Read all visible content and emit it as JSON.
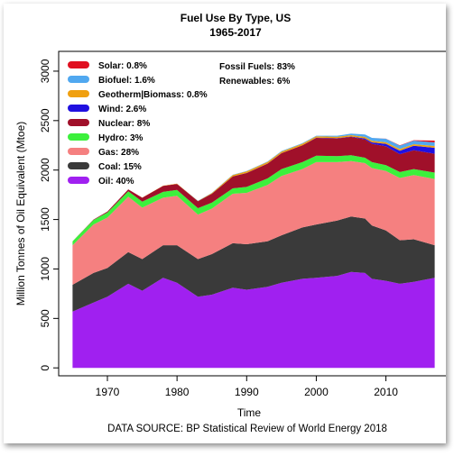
{
  "chart_data": {
    "type": "area",
    "title": "Fuel Use By Type, US",
    "subtitle": "1965-2017",
    "xlabel": "Time",
    "ylabel": "Million Tonnes of Oil Equivalent (Mtoe)",
    "source": "DATA SOURCE: BP Statistical Review of World Energy 2018",
    "stacked": true,
    "xlim": [
      1963,
      2019
    ],
    "ylim": [
      -80,
      3200
    ],
    "x_ticks": [
      1970,
      1980,
      1990,
      2000,
      2010
    ],
    "y_ticks": [
      0,
      500,
      1000,
      1500,
      2000,
      2500,
      3000
    ],
    "grid": false,
    "legend_position": "top-left",
    "summary": {
      "fossil": "Fossil Fuels: 83%",
      "renewables": "Renewables: 6%"
    },
    "x": [
      1965,
      1968,
      1970,
      1973,
      1975,
      1978,
      1980,
      1983,
      1985,
      1988,
      1990,
      1993,
      1995,
      1998,
      2000,
      2003,
      2005,
      2007,
      2008,
      2010,
      2012,
      2014,
      2017
    ],
    "series": [
      {
        "name": "Oil",
        "legend": "Oil:  40%",
        "color": "#a020f0",
        "values": [
          570,
          660,
          720,
          850,
          780,
          910,
          860,
          720,
          740,
          810,
          790,
          820,
          860,
          900,
          910,
          930,
          970,
          960,
          900,
          880,
          850,
          870,
          910
        ]
      },
      {
        "name": "Coal",
        "legend": "Coal:  15%",
        "color": "#3a3a3a",
        "values": [
          270,
          300,
          290,
          320,
          320,
          330,
          380,
          380,
          410,
          450,
          460,
          460,
          480,
          520,
          540,
          560,
          560,
          550,
          540,
          510,
          440,
          430,
          330
        ]
      },
      {
        "name": "Gas",
        "legend": "Gas:  28%",
        "color": "#f58080",
        "values": [
          400,
          490,
          510,
          560,
          520,
          480,
          500,
          450,
          460,
          500,
          520,
          570,
          600,
          590,
          630,
          590,
          560,
          560,
          580,
          600,
          630,
          650,
          670
        ]
      },
      {
        "name": "Hydro",
        "legend": "Hydro:  3%",
        "color": "#3cf03c",
        "values": [
          40,
          45,
          50,
          55,
          60,
          60,
          60,
          65,
          60,
          55,
          60,
          65,
          70,
          70,
          65,
          60,
          60,
          55,
          60,
          60,
          60,
          60,
          65
        ]
      },
      {
        "name": "Nuclear",
        "legend": "Nuclear:  8%",
        "color": "#a0102a",
        "values": [
          0,
          5,
          10,
          20,
          40,
          60,
          60,
          70,
          90,
          120,
          140,
          150,
          160,
          170,
          180,
          180,
          185,
          185,
          185,
          190,
          180,
          190,
          190
        ]
      },
      {
        "name": "Wind",
        "legend": "Wind:  2.6%",
        "color": "#2010e0",
        "values": [
          0,
          0,
          0,
          0,
          0,
          0,
          0,
          0,
          0,
          0,
          1,
          1,
          1,
          1,
          2,
          3,
          4,
          10,
          15,
          25,
          35,
          45,
          60
        ]
      },
      {
        "name": "Geotherm|Biomass",
        "legend": "Geotherm|Biomass:  0.8%",
        "color": "#f0a010",
        "values": [
          0,
          0,
          0,
          0,
          1,
          2,
          3,
          3,
          8,
          15,
          16,
          16,
          16,
          15,
          14,
          14,
          14,
          15,
          15,
          16,
          17,
          17,
          18
        ]
      },
      {
        "name": "Biofuel",
        "legend": "Biofuel:  1.6%",
        "color": "#50a8f0",
        "values": [
          0,
          0,
          0,
          0,
          0,
          0,
          0,
          1,
          2,
          3,
          3,
          4,
          5,
          6,
          6,
          10,
          15,
          25,
          30,
          35,
          35,
          35,
          37
        ]
      },
      {
        "name": "Solar",
        "legend": "Solar:  0.8%",
        "color": "#e01020",
        "values": [
          0,
          0,
          0,
          0,
          0,
          0,
          0,
          0,
          0,
          0,
          0,
          0,
          0,
          0,
          0,
          0,
          0,
          0,
          0,
          1,
          3,
          5,
          18
        ]
      }
    ]
  }
}
